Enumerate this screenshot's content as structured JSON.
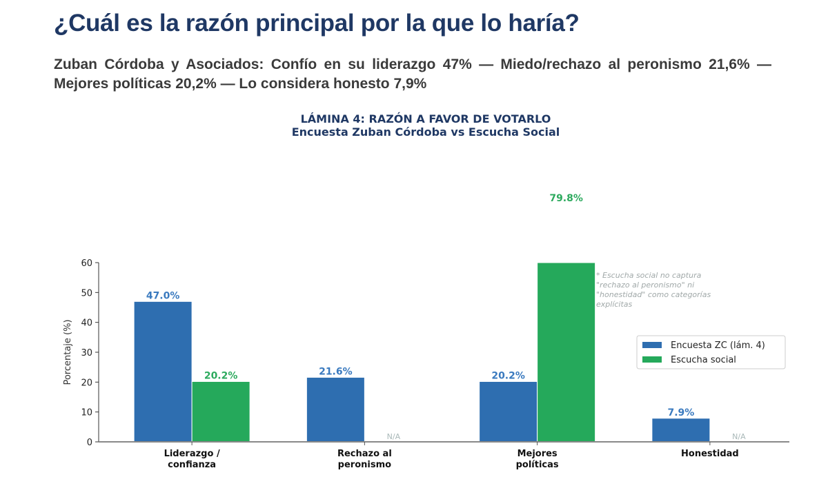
{
  "header": {
    "title": "¿Cuál es la razón principal por la que lo haría?",
    "subtitle": "Zuban Córdoba y Asociados: Confío en su liderazgo 47% — Miedo/rechazo al peronismo 21,6% — Mejores políticas 20,2% — Lo considera honesto 7,9%"
  },
  "chart_data": {
    "type": "bar",
    "title": "LÁMINA 4: RAZÓN A FAVOR DE VOTARLO",
    "subtitle": "Encuesta Zuban Córdoba vs Escucha Social",
    "xlabel": "",
    "ylabel": "Porcentaje (%)",
    "ylim": [
      0,
      60
    ],
    "yticks": [
      0,
      10,
      20,
      30,
      40,
      50,
      60
    ],
    "grid": false,
    "categories": [
      [
        "Liderazgo /",
        "confianza"
      ],
      [
        "Rechazo al",
        "peronismo"
      ],
      [
        "Mejores",
        "políticas"
      ],
      [
        "Honestidad"
      ]
    ],
    "series": [
      {
        "name": "Encuesta ZC (lám. 4)",
        "color": "#2e6eb0",
        "values": [
          47.0,
          21.6,
          20.2,
          7.9
        ],
        "labels": [
          "47.0%",
          "21.6%",
          "20.2%",
          "7.9%"
        ]
      },
      {
        "name": "Escucha social",
        "color": "#25a95b",
        "values": [
          20.2,
          null,
          79.8,
          null
        ],
        "labels": [
          "20.2%",
          "N/A",
          "79.8%",
          "N/A"
        ]
      }
    ],
    "label_colors": {
      "series0": "#3a7abf",
      "series1": "#2daa5e",
      "na": "#a9b8b8"
    },
    "note": [
      "* Escucha social no captura",
      "\"rechazo al peronismo\" ni",
      "\"honestidad\" como categorías",
      "explícitas"
    ],
    "legend": {
      "position": "center-right"
    }
  }
}
